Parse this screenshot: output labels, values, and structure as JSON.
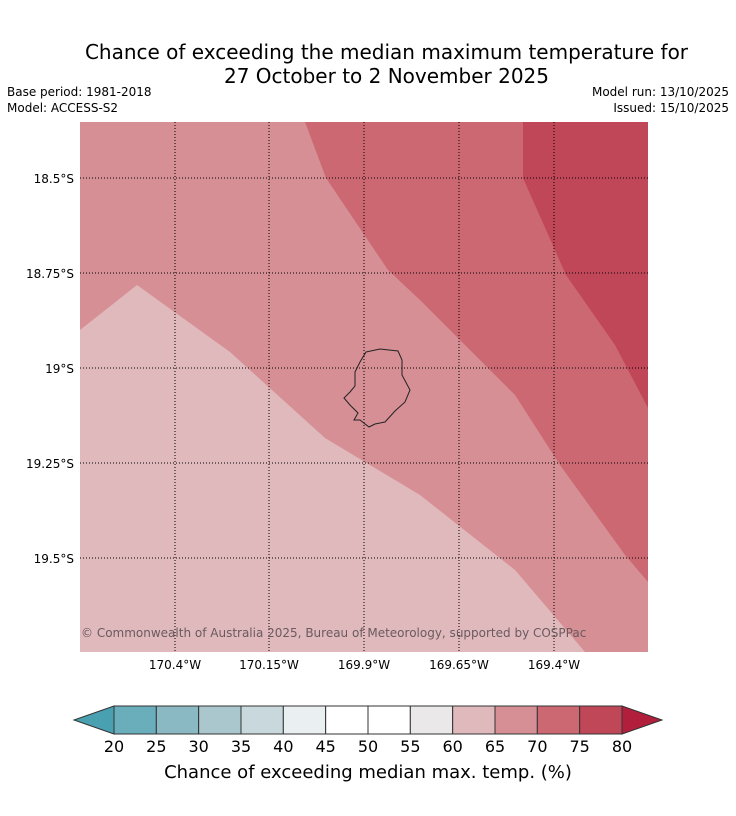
{
  "title_line1": "Chance of exceeding the median maximum temperature for",
  "title_line2": "27 October to 2 November 2025",
  "base_period": "Base period: 1981-2018",
  "model": "Model: ACCESS-S2",
  "model_run": "Model run: 13/10/2025",
  "issued": "Issued: 15/10/2025",
  "copyright": "© Commonwealth of Australia 2025, Bureau of Meteorology, supported by COSPPac",
  "lat_labels": [
    "18.5°S",
    "18.75°S",
    "19°S",
    "19.25°S",
    "19.5°S"
  ],
  "lon_labels": [
    "170.4°W",
    "170.15°W",
    "169.9°W",
    "169.65°W",
    "169.4°W"
  ],
  "colorbar": {
    "title": "Chance of exceeding median max. temp. (%)",
    "ticks": [
      "20",
      "25",
      "30",
      "35",
      "40",
      "45",
      "50",
      "55",
      "60",
      "65",
      "70",
      "75",
      "80"
    ],
    "under_color": "#48a0b0",
    "over_color": "#b11f3c",
    "colors": [
      "#6aaebc",
      "#8ab8c3",
      "#a9c7cc",
      "#c9d8dc",
      "#eaf0f2",
      "#ffffff",
      "#ffffff",
      "#eae8e9",
      "#e0b9bd",
      "#d68f95",
      "#cb6872",
      "#c04757"
    ]
  },
  "zones": {
    "c60_65": "#e0b9bd",
    "c65_70": "#d68f95",
    "c70_75": "#cb6872",
    "c75_80": "#c04757"
  }
}
